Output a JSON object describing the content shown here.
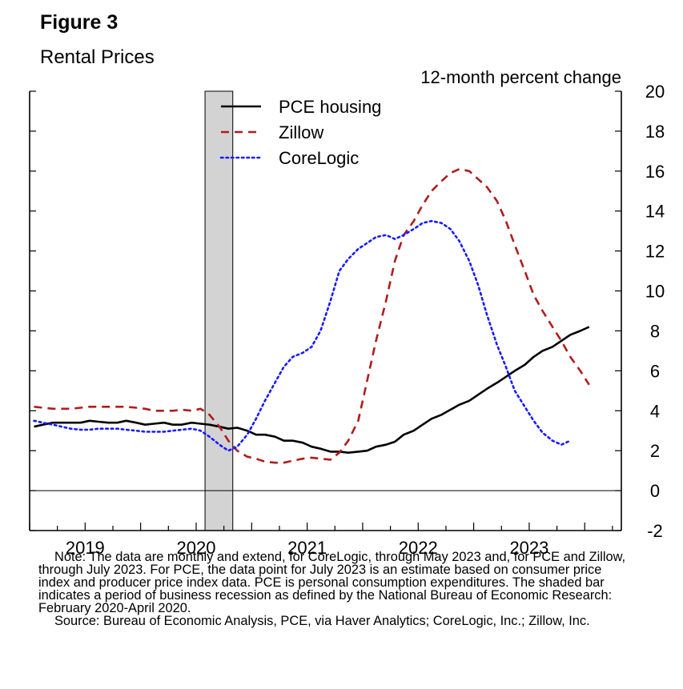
{
  "figure": {
    "label": "Figure 3",
    "title": "Rental Prices"
  },
  "chart_data": {
    "type": "line",
    "ylabel": "12-month percent change",
    "ylim": [
      -2,
      20
    ],
    "yticks": [
      20,
      18,
      16,
      14,
      12,
      10,
      8,
      6,
      4,
      2,
      0,
      -2
    ],
    "xlim": [
      2018.5,
      2023.83
    ],
    "xticks": [
      {
        "label": "2019",
        "pos": 2019.0
      },
      {
        "label": "2020",
        "pos": 2020.0
      },
      {
        "label": "2021",
        "pos": 2021.0
      },
      {
        "label": "2022",
        "pos": 2022.0
      },
      {
        "label": "2023",
        "pos": 2023.0
      }
    ],
    "zero_line": true,
    "recession": {
      "start": 2020.08,
      "end": 2020.33
    },
    "legend": [
      "PCE housing",
      "Zillow",
      "CoreLogic"
    ],
    "legend_position": "top-left",
    "series": [
      {
        "name": "PCE housing",
        "style": "solid",
        "color": "#000000",
        "x": [
          2018.54,
          2018.62,
          2018.71,
          2018.79,
          2018.87,
          2018.96,
          2019.04,
          2019.12,
          2019.21,
          2019.29,
          2019.37,
          2019.46,
          2019.54,
          2019.62,
          2019.71,
          2019.79,
          2019.87,
          2019.96,
          2020.04,
          2020.12,
          2020.21,
          2020.29,
          2020.37,
          2020.46,
          2020.54,
          2020.62,
          2020.71,
          2020.79,
          2020.87,
          2020.96,
          2021.04,
          2021.12,
          2021.21,
          2021.29,
          2021.37,
          2021.46,
          2021.54,
          2021.62,
          2021.71,
          2021.79,
          2021.87,
          2021.96,
          2022.04,
          2022.12,
          2022.21,
          2022.29,
          2022.37,
          2022.46,
          2022.54,
          2022.62,
          2022.71,
          2022.79,
          2022.87,
          2022.96,
          2023.04,
          2023.12,
          2023.21,
          2023.29,
          2023.37,
          2023.46,
          2023.54
        ],
        "values": [
          3.2,
          3.3,
          3.4,
          3.4,
          3.4,
          3.4,
          3.5,
          3.45,
          3.4,
          3.4,
          3.5,
          3.4,
          3.3,
          3.35,
          3.4,
          3.3,
          3.3,
          3.4,
          3.35,
          3.3,
          3.2,
          3.1,
          3.15,
          3.0,
          2.8,
          2.8,
          2.7,
          2.5,
          2.5,
          2.4,
          2.2,
          2.1,
          1.95,
          1.95,
          1.9,
          1.95,
          2.0,
          2.2,
          2.3,
          2.45,
          2.8,
          3.0,
          3.3,
          3.6,
          3.8,
          4.05,
          4.3,
          4.5,
          4.8,
          5.1,
          5.4,
          5.7,
          6.0,
          6.3,
          6.7,
          7.0,
          7.2,
          7.5,
          7.8,
          8.0,
          8.2
        ]
      },
      {
        "name": "Zillow",
        "style": "dashed",
        "color": "#b01c1c",
        "x": [
          2018.54,
          2018.62,
          2018.71,
          2018.79,
          2018.87,
          2018.96,
          2019.04,
          2019.12,
          2019.21,
          2019.29,
          2019.37,
          2019.46,
          2019.54,
          2019.62,
          2019.71,
          2019.79,
          2019.87,
          2019.96,
          2020.04,
          2020.12,
          2020.21,
          2020.29,
          2020.37,
          2020.46,
          2020.54,
          2020.62,
          2020.71,
          2020.79,
          2020.87,
          2020.96,
          2021.04,
          2021.12,
          2021.21,
          2021.29,
          2021.37,
          2021.46,
          2021.54,
          2021.62,
          2021.71,
          2021.79,
          2021.87,
          2021.96,
          2022.04,
          2022.12,
          2022.21,
          2022.29,
          2022.37,
          2022.46,
          2022.54,
          2022.62,
          2022.71,
          2022.79,
          2022.87,
          2022.96,
          2023.04,
          2023.12,
          2023.21,
          2023.29,
          2023.37,
          2023.46,
          2023.54
        ],
        "values": [
          4.2,
          4.15,
          4.1,
          4.1,
          4.1,
          4.15,
          4.2,
          4.2,
          4.2,
          4.2,
          4.2,
          4.15,
          4.1,
          4.0,
          4.0,
          4.0,
          4.05,
          4.0,
          4.1,
          3.8,
          3.2,
          2.5,
          2.0,
          1.7,
          1.6,
          1.45,
          1.4,
          1.4,
          1.5,
          1.6,
          1.65,
          1.6,
          1.55,
          1.9,
          2.5,
          3.5,
          5.5,
          7.5,
          9.5,
          11.5,
          12.8,
          13.5,
          14.3,
          15.0,
          15.5,
          15.9,
          16.1,
          16.0,
          15.6,
          15.2,
          14.5,
          13.5,
          12.3,
          11.0,
          9.8,
          9.0,
          8.2,
          7.5,
          6.7,
          6.0,
          5.3
        ]
      },
      {
        "name": "CoreLogic",
        "style": "dotted",
        "color": "#1a1aff",
        "x": [
          2018.54,
          2018.62,
          2018.71,
          2018.79,
          2018.87,
          2018.96,
          2019.04,
          2019.12,
          2019.21,
          2019.29,
          2019.37,
          2019.46,
          2019.54,
          2019.62,
          2019.71,
          2019.79,
          2019.87,
          2019.96,
          2020.04,
          2020.12,
          2020.21,
          2020.29,
          2020.37,
          2020.46,
          2020.54,
          2020.62,
          2020.71,
          2020.79,
          2020.87,
          2020.96,
          2021.04,
          2021.12,
          2021.21,
          2021.29,
          2021.37,
          2021.46,
          2021.54,
          2021.62,
          2021.71,
          2021.79,
          2021.87,
          2021.96,
          2022.04,
          2022.12,
          2022.21,
          2022.29,
          2022.37,
          2022.46,
          2022.54,
          2022.62,
          2022.71,
          2022.79,
          2022.87,
          2022.96,
          2023.04,
          2023.12,
          2023.21,
          2023.29,
          2023.37
        ],
        "values": [
          3.5,
          3.4,
          3.3,
          3.2,
          3.1,
          3.05,
          3.05,
          3.1,
          3.1,
          3.1,
          3.05,
          3.0,
          2.95,
          2.95,
          2.95,
          3.0,
          3.05,
          3.1,
          3.0,
          2.7,
          2.3,
          2.0,
          2.2,
          2.8,
          3.6,
          4.5,
          5.4,
          6.2,
          6.7,
          6.9,
          7.2,
          8.0,
          9.5,
          11.0,
          11.6,
          12.1,
          12.4,
          12.7,
          12.8,
          12.6,
          12.8,
          13.1,
          13.4,
          13.5,
          13.4,
          13.1,
          12.5,
          11.5,
          10.3,
          8.8,
          7.3,
          6.2,
          5.0,
          4.2,
          3.5,
          2.9,
          2.5,
          2.3,
          2.5
        ]
      }
    ]
  },
  "note": {
    "text": "Note: The data are monthly and extend, for CoreLogic, through May 2023 and, for PCE and Zillow, through July 2023. For PCE, the data point for July 2023 is an estimate based on consumer price index and producer price index data. PCE is personal consumption expenditures. The shaded bar indicates a period of business recession as defined by the National Bureau of Economic Research: February 2020-April 2020.",
    "source": "Source: Bureau of Economic Analysis, PCE, via Haver Analytics; CoreLogic, Inc.; Zillow, Inc."
  }
}
